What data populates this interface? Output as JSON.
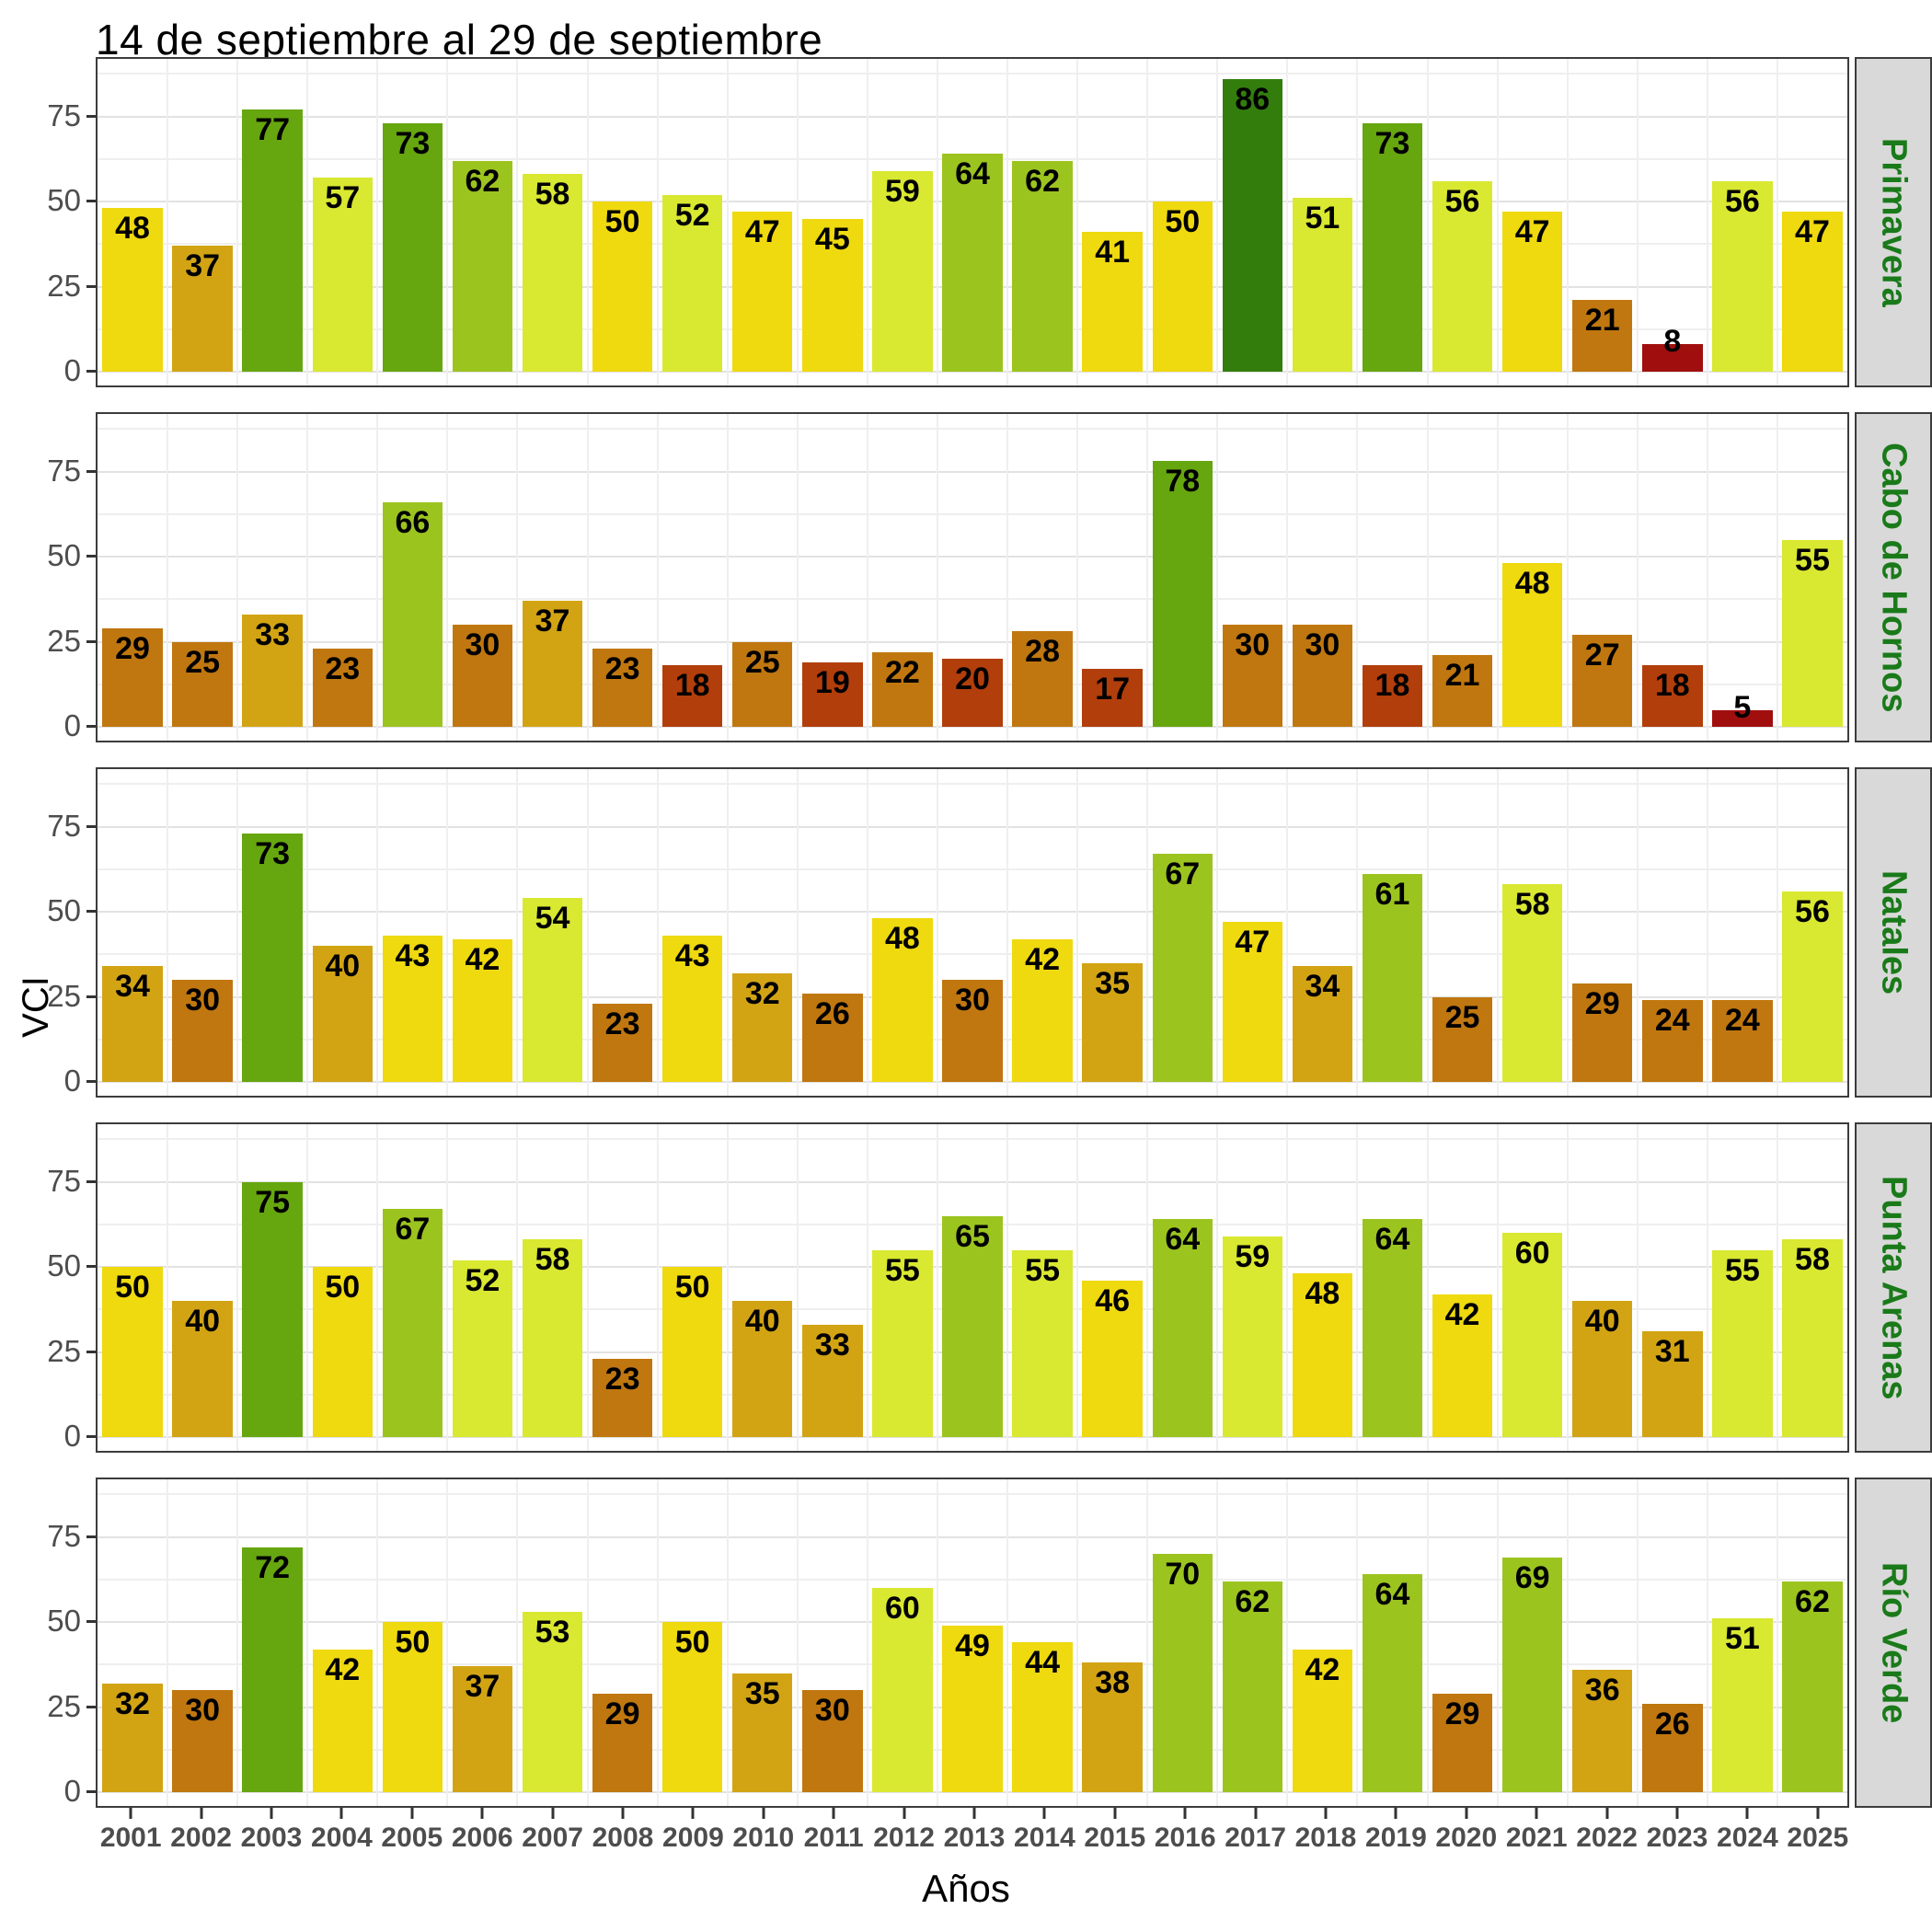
{
  "title": "14 de septiembre al 29 de septiembre",
  "axes": {
    "x_label": "Años",
    "y_label": "VCI",
    "y_ticks": [
      0,
      25,
      50,
      75
    ]
  },
  "chart_data": {
    "type": "bar",
    "title": "14 de septiembre al 29 de septiembre",
    "xlabel": "Años",
    "ylabel": "VCI",
    "faceted": true,
    "legend": "none",
    "grid": true,
    "ylim": [
      0,
      91
    ],
    "y_major_gridlines": [
      0,
      25,
      50,
      75
    ],
    "y_minor_gridlines": [
      12.5,
      37.5,
      62.5,
      87.5
    ],
    "categories": [
      "2001",
      "2002",
      "2003",
      "2004",
      "2005",
      "2006",
      "2007",
      "2008",
      "2009",
      "2010",
      "2011",
      "2012",
      "2013",
      "2014",
      "2015",
      "2016",
      "2017",
      "2018",
      "2019",
      "2020",
      "2021",
      "2022",
      "2023",
      "2024",
      "2025"
    ],
    "series": [
      {
        "name": "Primavera",
        "values": [
          48,
          37,
          77,
          57,
          73,
          62,
          58,
          50,
          52,
          47,
          45,
          59,
          64,
          62,
          41,
          50,
          86,
          51,
          73,
          56,
          47,
          21,
          8,
          56,
          47
        ]
      },
      {
        "name": "Cabo de Hornos",
        "values": [
          29,
          25,
          33,
          23,
          66,
          30,
          37,
          23,
          18,
          25,
          19,
          22,
          20,
          28,
          17,
          78,
          30,
          30,
          18,
          21,
          48,
          27,
          18,
          5,
          55
        ]
      },
      {
        "name": "Natales",
        "values": [
          34,
          30,
          73,
          40,
          43,
          42,
          54,
          23,
          43,
          32,
          26,
          48,
          30,
          42,
          35,
          67,
          47,
          34,
          61,
          25,
          58,
          29,
          24,
          24,
          56
        ]
      },
      {
        "name": "Punta Arenas",
        "values": [
          50,
          40,
          75,
          50,
          67,
          52,
          58,
          23,
          50,
          40,
          33,
          55,
          65,
          55,
          46,
          64,
          59,
          48,
          64,
          42,
          60,
          40,
          31,
          55,
          58
        ]
      },
      {
        "name": "Río Verde",
        "values": [
          32,
          30,
          72,
          42,
          50,
          37,
          53,
          29,
          50,
          35,
          30,
          60,
          49,
          44,
          38,
          70,
          62,
          42,
          64,
          29,
          69,
          36,
          26,
          51,
          62
        ]
      }
    ],
    "color_scale": {
      "description": "discrete VCI classes, value <= break",
      "breaks": [
        10,
        20,
        30,
        40,
        50,
        60,
        70,
        80,
        100
      ],
      "colors": [
        "#A00E0E",
        "#B23E0B",
        "#C0770F",
        "#D2A414",
        "#EFD90F",
        "#D9E830",
        "#9CC41F",
        "#66A60F",
        "#337D0D"
      ]
    }
  },
  "colors": {
    "background": "#FFFFFF",
    "panel_border": "#3C3C3C",
    "grid_major": "#E2E2E2",
    "grid_minor": "#EFEFEF",
    "strip_background": "#D9D9D9",
    "strip_text": "#1A7A1A",
    "axis_text": "#4D4D4D",
    "axis_title": "#000000",
    "bar_label": "#000000",
    "tick_mark": "#333333"
  }
}
